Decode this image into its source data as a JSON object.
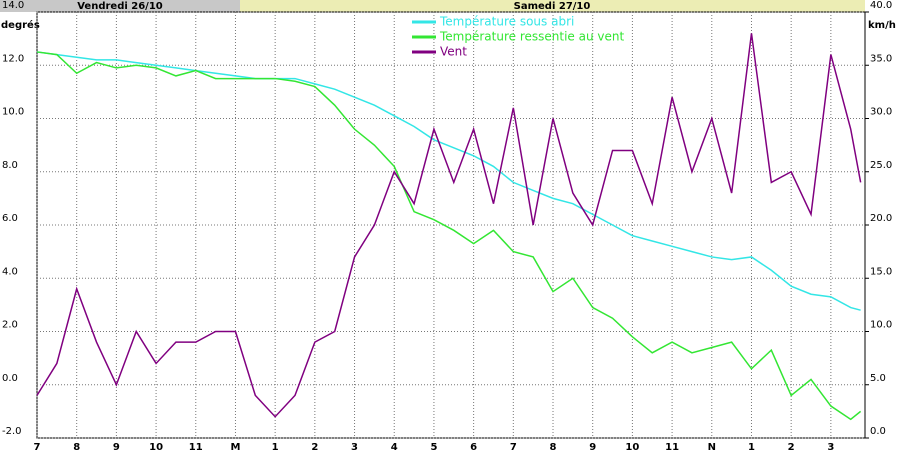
{
  "chart_data": {
    "type": "line",
    "day_labels": [
      "Vendredi 26/10",
      "Samedi 27/10"
    ],
    "ylabel": "degrés",
    "y2label": "km/h",
    "x": [
      7,
      7.5,
      8,
      8.5,
      9,
      9.5,
      10,
      10.5,
      11,
      11.5,
      12,
      12.5,
      13,
      13.5,
      14,
      14.5,
      15,
      15.5,
      16,
      16.5,
      17,
      17.5,
      18,
      18.5,
      19,
      19.5,
      20,
      20.5,
      21,
      21.5,
      22,
      22.5,
      23,
      23.5,
      24,
      24.5,
      25,
      25.5,
      26,
      26.5,
      27,
      27.5,
      27.75
    ],
    "series": [
      {
        "name": "Température sous abri",
        "color": "#33e6e6",
        "values": [
          12.5,
          12.4,
          12.3,
          12.2,
          12.2,
          12.1,
          12.0,
          11.9,
          11.8,
          11.7,
          11.6,
          11.5,
          11.5,
          11.5,
          11.3,
          11.1,
          10.8,
          10.5,
          10.1,
          9.7,
          9.2,
          8.9,
          8.6,
          8.2,
          7.6,
          7.3,
          7.0,
          6.8,
          6.4,
          6.0,
          5.6,
          5.4,
          5.2,
          5.0,
          4.8,
          4.7,
          4.8,
          4.3,
          3.7,
          3.4,
          3.3,
          2.9,
          2.8
        ]
      },
      {
        "name": "Température ressentie au vent",
        "color": "#33e633",
        "values": [
          12.5,
          12.4,
          11.7,
          12.1,
          11.9,
          12.0,
          11.9,
          11.6,
          11.8,
          11.5,
          11.5,
          11.5,
          11.5,
          11.4,
          11.2,
          10.5,
          9.6,
          9.0,
          8.2,
          6.5,
          6.2,
          5.8,
          5.3,
          5.8,
          5.0,
          4.8,
          3.5,
          4.0,
          2.9,
          2.5,
          1.8,
          1.2,
          1.6,
          1.2,
          1.4,
          1.6,
          0.6,
          1.3,
          -0.4,
          0.2,
          -0.8,
          -1.3,
          -1.0
        ]
      },
      {
        "name": "Vent",
        "color": "#800080",
        "axis": "y2",
        "values": [
          4,
          7,
          14,
          9,
          5,
          10,
          7,
          9,
          9,
          10,
          10,
          4,
          2,
          4,
          9,
          10,
          17,
          20,
          25,
          22,
          29,
          24,
          29,
          22,
          31,
          20,
          30,
          23,
          20,
          27,
          27,
          22,
          32,
          25,
          30,
          23,
          38,
          24,
          25,
          21,
          36,
          29,
          24
        ]
      }
    ],
    "xlim": [
      7,
      27.86
    ],
    "xticks": [
      {
        "value": 7,
        "label": "7"
      },
      {
        "value": 8,
        "label": "8"
      },
      {
        "value": 9,
        "label": "9"
      },
      {
        "value": 10,
        "label": "10"
      },
      {
        "value": 11,
        "label": "11"
      },
      {
        "value": 12,
        "label": "M"
      },
      {
        "value": 13,
        "label": "1"
      },
      {
        "value": 14,
        "label": "2"
      },
      {
        "value": 15,
        "label": "3"
      },
      {
        "value": 16,
        "label": "4"
      },
      {
        "value": 17,
        "label": "5"
      },
      {
        "value": 18,
        "label": "6"
      },
      {
        "value": 19,
        "label": "7"
      },
      {
        "value": 20,
        "label": "8"
      },
      {
        "value": 21,
        "label": "9"
      },
      {
        "value": 22,
        "label": "10"
      },
      {
        "value": 23,
        "label": "11"
      },
      {
        "value": 24,
        "label": "N"
      },
      {
        "value": 25,
        "label": "1"
      },
      {
        "value": 26,
        "label": "2"
      },
      {
        "value": 27,
        "label": "3"
      }
    ],
    "ylim": [
      -2,
      14
    ],
    "yticks": [
      {
        "value": -2,
        "label": "-2.0"
      },
      {
        "value": 0,
        "label": "0.0"
      },
      {
        "value": 2,
        "label": "2.0"
      },
      {
        "value": 4,
        "label": "4.0"
      },
      {
        "value": 6,
        "label": "6.0"
      },
      {
        "value": 8,
        "label": "8.0"
      },
      {
        "value": 10,
        "label": "10.0"
      },
      {
        "value": 12,
        "label": "12.0"
      },
      {
        "value": 14,
        "label": "14.0"
      }
    ],
    "y2lim": [
      0,
      40
    ],
    "y2ticks": [
      {
        "value": 0,
        "label": "0.0"
      },
      {
        "value": 5,
        "label": "5.0"
      },
      {
        "value": 10,
        "label": "10.0"
      },
      {
        "value": 15,
        "label": "15.0"
      },
      {
        "value": 20,
        "label": "20.0"
      },
      {
        "value": 25,
        "label": "25.0"
      },
      {
        "value": 30,
        "label": "30.0"
      },
      {
        "value": 35,
        "label": "35.0"
      },
      {
        "value": 40,
        "label": "40.0"
      }
    ],
    "grid": true
  }
}
